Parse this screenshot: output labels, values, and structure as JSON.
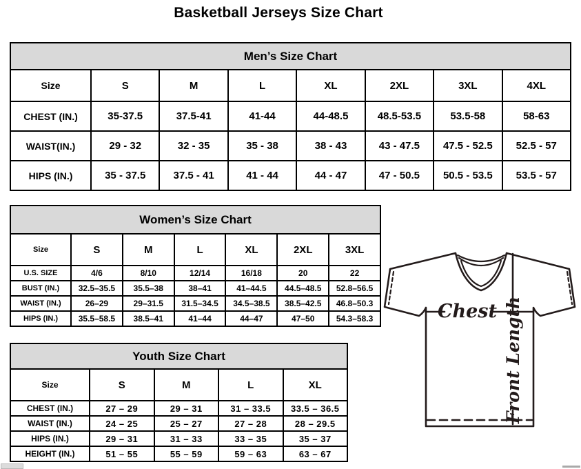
{
  "page": {
    "title": "Basketball Jerseys Size Chart"
  },
  "tables": {
    "mens": {
      "title": "Men’s Size Chart",
      "size_label": "Size",
      "columns": [
        "S",
        "M",
        "L",
        "XL",
        "2XL",
        "3XL",
        "4XL"
      ],
      "rows": [
        {
          "label": "CHEST (IN.)",
          "values": [
            "35-37.5",
            "37.5-41",
            "41-44",
            "44-48.5",
            "48.5-53.5",
            "53.5-58",
            "58-63"
          ]
        },
        {
          "label": "WAIST(IN.)",
          "values": [
            "29 - 32",
            "32 - 35",
            "35 - 38",
            "38 - 43",
            "43 - 47.5",
            "47.5 - 52.5",
            "52.5 - 57"
          ]
        },
        {
          "label": "HIPS (IN.)",
          "values": [
            "35 - 37.5",
            "37.5 - 41",
            "41 - 44",
            "44 - 47",
            "47 - 50.5",
            "50.5 - 53.5",
            "53.5 - 57"
          ]
        }
      ]
    },
    "womens": {
      "title": "Women’s Size Chart",
      "size_label": "Size",
      "columns": [
        "S",
        "M",
        "L",
        "XL",
        "2XL",
        "3XL"
      ],
      "rows": [
        {
          "label": "U.S. SIZE",
          "values": [
            "4/6",
            "8/10",
            "12/14",
            "16/18",
            "20",
            "22"
          ]
        },
        {
          "label": "BUST (IN.)",
          "values": [
            "32.5–35.5",
            "35.5–38",
            "38–41",
            "41–44.5",
            "44.5–48.5",
            "52.8–56.5"
          ]
        },
        {
          "label": "WAIST (IN.)",
          "values": [
            "26–29",
            "29–31.5",
            "31.5–34.5",
            "34.5–38.5",
            "38.5–42.5",
            "46.8–50.3"
          ]
        },
        {
          "label": "HIPS (IN.)",
          "values": [
            "35.5–58.5",
            "38.5–41",
            "41–44",
            "44–47",
            "47–50",
            "54.3–58.3"
          ]
        }
      ]
    },
    "youth": {
      "title": "Youth Size Chart",
      "size_label": "Size",
      "columns": [
        "S",
        "M",
        "L",
        "XL"
      ],
      "rows": [
        {
          "label": "CHEST (IN.)",
          "values": [
            "27 – 29",
            "29 – 31",
            "31 – 33.5",
            "33.5 – 36.5"
          ]
        },
        {
          "label": "WAIST (IN.)",
          "values": [
            "24 – 25",
            "25 – 27",
            "27 – 28",
            "28 – 29.5"
          ]
        },
        {
          "label": "HIPS (IN.)",
          "values": [
            "29 – 31",
            "31 – 33",
            "33 – 35",
            "35 – 37"
          ]
        },
        {
          "label": "HEIGHT (IN.)",
          "values": [
            "51 – 55",
            "55 – 59",
            "59 – 63",
            "63 – 67"
          ]
        }
      ]
    }
  },
  "diagram": {
    "chest_label": "Chest",
    "front_length_label": "Front Length"
  },
  "colors": {
    "banner_gray": "#d9d9d9",
    "line_dark": "#231b1b"
  }
}
